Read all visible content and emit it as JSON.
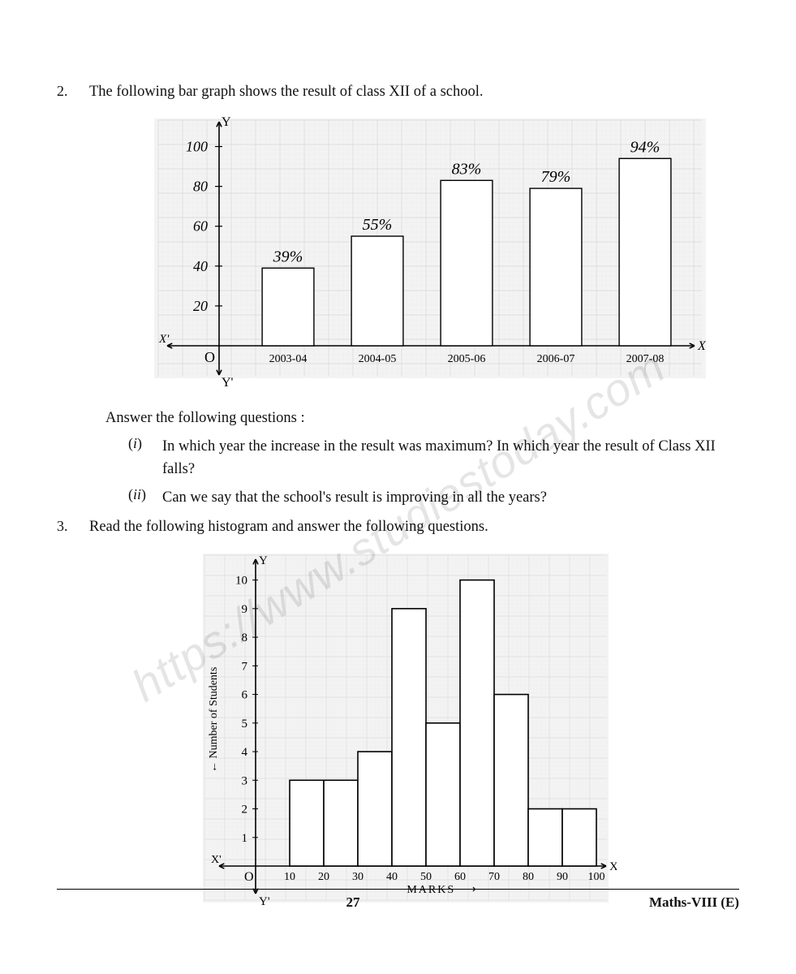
{
  "q2": {
    "number": "2.",
    "text": "The following bar graph shows the result of class XII of a school.",
    "answer_prompt": "Answer the following questions :",
    "subs": [
      {
        "n": "i",
        "t": "In which year the increase in the result was maximum? In which year the result of Class XII falls?"
      },
      {
        "n": "ii",
        "t": "Can we say that the school's result is improving in all the years?"
      }
    ]
  },
  "q3": {
    "number": "3.",
    "text": "Read the following histogram and answer the following questions."
  },
  "bar_chart": {
    "type": "bar",
    "y_axis_label_top": "Y",
    "y_axis_label_bottom": "Y'",
    "x_axis_label_right": "X",
    "x_axis_label_left": "X'",
    "origin_label": "O",
    "categories": [
      "2003-04",
      "2004-05",
      "2005-06",
      "2006-07",
      "2007-08"
    ],
    "values": [
      39,
      55,
      83,
      79,
      94
    ],
    "value_labels": [
      "39%",
      "55%",
      "83%",
      "79%",
      "94%"
    ],
    "y_ticks": [
      20,
      40,
      60,
      80,
      100
    ],
    "ylim": [
      0,
      110
    ],
    "bar_fill": "#ffffff",
    "bar_stroke": "#000000",
    "bar_stroke_width": 1.4,
    "axis_stroke": "#000000",
    "axis_stroke_width": 1.6,
    "grid_color": "#d9d9d9",
    "grid_minor_color": "#ececec",
    "background_color": "#f3f3f3",
    "label_fontsize": 16,
    "value_label_fontsize": 20,
    "handwritten_font": "cursive"
  },
  "histogram": {
    "type": "histogram",
    "y_axis_label_top": "Y",
    "y_axis_label_bottom": "Y'",
    "x_axis_label_right": "X",
    "x_axis_label_left": "X'",
    "origin_label": "O",
    "x_title": "MARKS",
    "y_title": "Number of Students →",
    "x_ticks": [
      0,
      10,
      20,
      30,
      40,
      50,
      60,
      70,
      80,
      90,
      100
    ],
    "y_ticks": [
      1,
      2,
      3,
      4,
      5,
      6,
      7,
      8,
      9,
      10
    ],
    "ylim": [
      0,
      10.5
    ],
    "bins": [
      {
        "from": 10,
        "to": 20,
        "h": 3
      },
      {
        "from": 20,
        "to": 30,
        "h": 3
      },
      {
        "from": 30,
        "to": 40,
        "h": 4
      },
      {
        "from": 40,
        "to": 50,
        "h": 9
      },
      {
        "from": 50,
        "to": 60,
        "h": 5
      },
      {
        "from": 60,
        "to": 70,
        "h": 10
      },
      {
        "from": 70,
        "to": 80,
        "h": 6
      },
      {
        "from": 80,
        "to": 90,
        "h": 2
      },
      {
        "from": 90,
        "to": 100,
        "h": 2
      }
    ],
    "bar_fill": "#ffffff",
    "bar_stroke": "#000000",
    "bar_stroke_width": 1.6,
    "axis_stroke": "#000000",
    "axis_stroke_width": 1.6,
    "grid_color": "#dddddd",
    "grid_minor_color": "#efefef",
    "background_color": "#f3f3f3",
    "label_fontsize": 15
  },
  "footer": {
    "page": "27",
    "subject": "Maths-VIII  (E)"
  },
  "watermark": "https://www.studiestoday.com"
}
